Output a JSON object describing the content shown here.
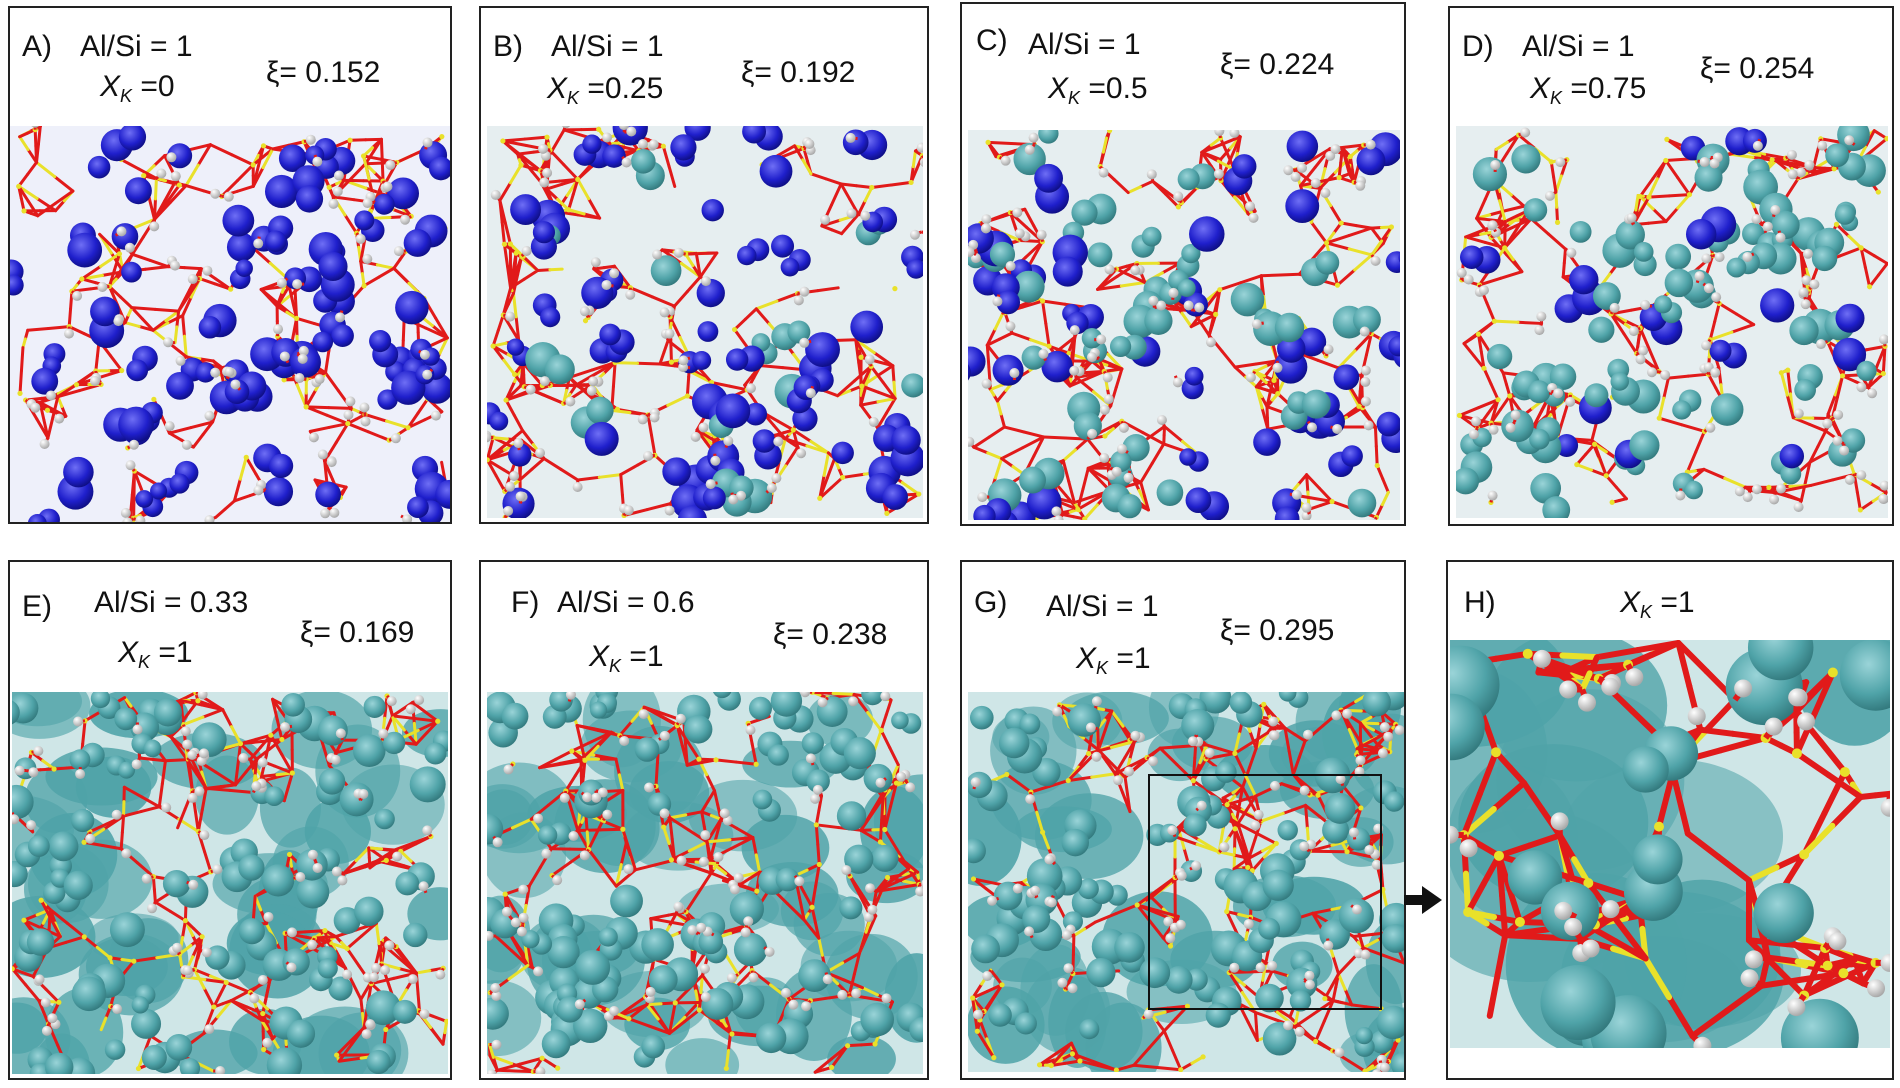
{
  "colors": {
    "na_blob": "#1f1fcc",
    "k_blob": "#4fa3a8",
    "bond": "#e11a1a",
    "si_al": "#e9e12a",
    "hydrogen": "#f2f2f2"
  },
  "panels": [
    {
      "id": "A",
      "label": "A)",
      "alsi": "Al/Si = 1",
      "xk_sym": "X",
      "xk_sub": "K",
      "xk_val": "=0",
      "xi": "ξ= 0.152",
      "k_fraction": 0
    },
    {
      "id": "B",
      "label": "B)",
      "alsi": "Al/Si = 1",
      "xk_sym": "X",
      "xk_sub": "K",
      "xk_val": "=0.25",
      "xi": "ξ= 0.192",
      "k_fraction": 0.25
    },
    {
      "id": "C",
      "label": "C)",
      "alsi": "Al/Si = 1",
      "xk_sym": "X",
      "xk_sub": "K",
      "xk_val": "=0.5",
      "xi": "ξ= 0.224",
      "k_fraction": 0.5
    },
    {
      "id": "D",
      "label": "D)",
      "alsi": "Al/Si = 1",
      "xk_sym": "X",
      "xk_sub": "K",
      "xk_val": "=0.75",
      "xi": "ξ= 0.254",
      "k_fraction": 0.75
    },
    {
      "id": "E",
      "label": "E)",
      "alsi": "Al/Si = 0.33",
      "xk_sym": "X",
      "xk_sub": "K",
      "xk_val": "=1",
      "xi": "ξ= 0.169",
      "k_fraction": 1
    },
    {
      "id": "F",
      "label": "F)",
      "alsi": "Al/Si = 0.6",
      "xk_sym": "X",
      "xk_sub": "K",
      "xk_val": "=1",
      "xi": "ξ= 0.238",
      "k_fraction": 1
    },
    {
      "id": "G",
      "label": "G)",
      "alsi": "Al/Si = 1",
      "xk_sym": "X",
      "xk_sub": "K",
      "xk_val": "=1",
      "xi": "ξ= 0.295",
      "k_fraction": 1
    },
    {
      "id": "H",
      "label": "H)",
      "alsi": "",
      "xk_sym": "X",
      "xk_sub": "K",
      "xk_val": "=1",
      "xi": "",
      "k_fraction": 1
    }
  ]
}
